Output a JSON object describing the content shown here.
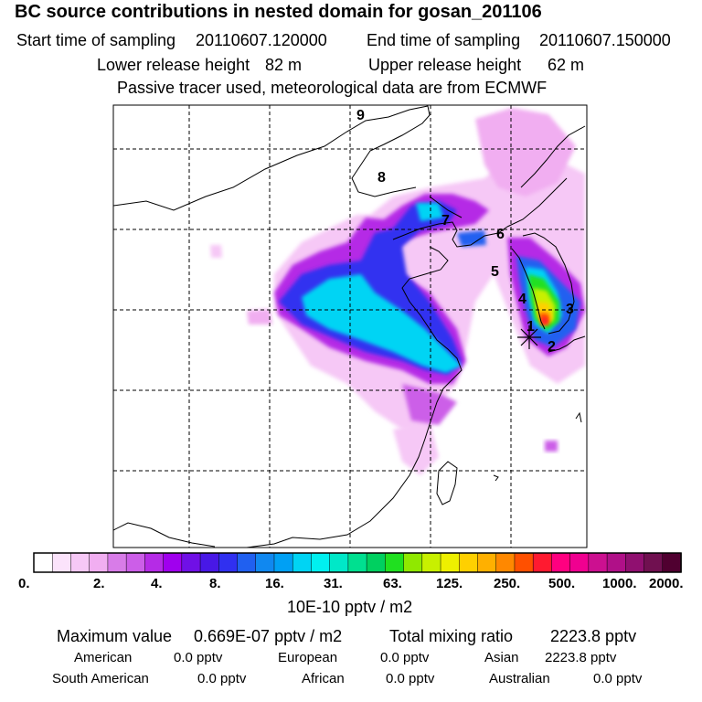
{
  "title": "BC  source contributions in nested domain for gosan_201106",
  "sampling": {
    "start_label": "Start time of sampling",
    "start_value": "20110607.120000",
    "end_label": "End time of sampling",
    "end_value": "20110607.150000"
  },
  "release": {
    "lower_label": "Lower release height",
    "lower_value": "82 m",
    "upper_label": "Upper release height",
    "upper_value": "62 m"
  },
  "subtitle": "Passive tracer used, meteorological data are from ECMWF",
  "map": {
    "point_labels": [
      "9",
      "8",
      "7",
      "6",
      "5",
      "4",
      "3",
      "2",
      "1"
    ],
    "receptor": "gosan"
  },
  "legend": {
    "colors": [
      "#ffffff",
      "#fbe3fb",
      "#f6c8f6",
      "#f1aef1",
      "#d87ce8",
      "#cc5ee8",
      "#b52be6",
      "#a000ee",
      "#7010e6",
      "#4818e6",
      "#3030f0",
      "#2060f0",
      "#1088f0",
      "#00a0f4",
      "#00d4f4",
      "#00f0f0",
      "#00e8c8",
      "#00e090",
      "#00d060",
      "#20e020",
      "#90e800",
      "#c8f000",
      "#eef000",
      "#ffd000",
      "#ffb000",
      "#ff8800",
      "#ff5000",
      "#ff1a30",
      "#ff0080",
      "#f00090",
      "#cc1090",
      "#b01088",
      "#901070",
      "#701050",
      "#500030"
    ],
    "tick_labels": [
      "0.",
      "2.",
      "4.",
      "8.",
      "16.",
      "31.",
      "63.",
      "125.",
      "250.",
      "500.",
      "1000.",
      "2000."
    ],
    "unit": "10E-10 pptv / m2"
  },
  "summary": {
    "max_label": "Maximum value",
    "max_value": "0.669E-07 pptv / m2",
    "total_label": "Total mixing ratio",
    "total_value": "2223.8 pptv",
    "regions": [
      {
        "name": "American",
        "value": "0.0 pptv"
      },
      {
        "name": "European",
        "value": "0.0 pptv"
      },
      {
        "name": "Asian",
        "value": "2223.8 pptv"
      },
      {
        "name": "South American",
        "value": "0.0 pptv"
      },
      {
        "name": "African",
        "value": "0.0 pptv"
      },
      {
        "name": "Australian",
        "value": "0.0 pptv"
      }
    ]
  }
}
